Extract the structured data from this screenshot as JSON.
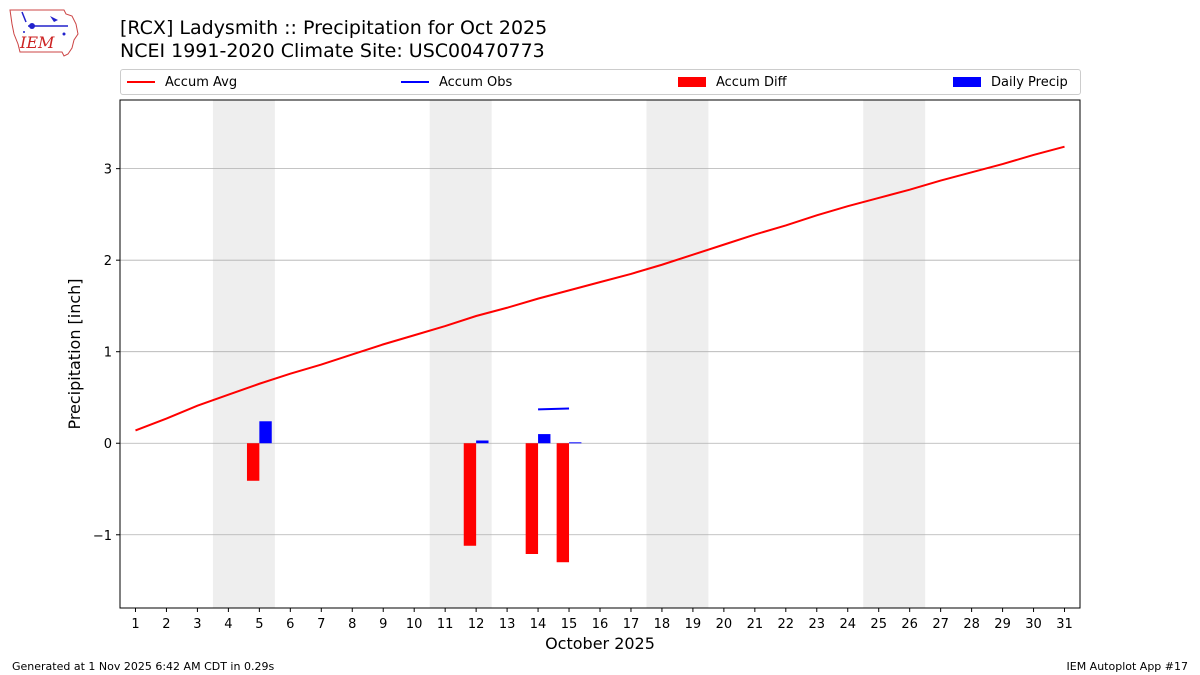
{
  "header": {
    "title_line1": "[RCX] Ladysmith :: Precipitation for Oct 2025",
    "title_line2": "NCEI 1991-2020 Climate Site: USC00470773",
    "logo_text": "IEM"
  },
  "footer": {
    "generated": "Generated at 1 Nov 2025 6:42 AM CDT in 0.29s",
    "app": "IEM Autoplot App #17"
  },
  "legend": {
    "accum_avg": "Accum Avg",
    "accum_obs": "Accum Obs",
    "accum_diff": "Accum Diff",
    "daily_precip": "Daily Precip"
  },
  "colors": {
    "accum_avg": "#ff0000",
    "accum_obs": "#0000ff",
    "accum_diff": "#ff0000",
    "daily_precip": "#0000ff",
    "weekend_shade": "#eeeeee",
    "grid": "#b0b0b0"
  },
  "chart_data": {
    "type": "bar",
    "xlabel": "October 2025",
    "ylabel": "Precipitation [inch]",
    "xlim": [
      0.5,
      31.5
    ],
    "ylim": [
      -1.8,
      3.75
    ],
    "y_ticks": [
      -1,
      0,
      1,
      2,
      3
    ],
    "y_tick_labels": [
      "−1",
      "0",
      "1",
      "2",
      "3"
    ],
    "x_ticks": [
      1,
      2,
      3,
      4,
      5,
      6,
      7,
      8,
      9,
      10,
      11,
      12,
      13,
      14,
      15,
      16,
      17,
      18,
      19,
      20,
      21,
      22,
      23,
      24,
      25,
      26,
      27,
      28,
      29,
      30,
      31
    ],
    "grid": "horizontal",
    "legend_position": "top",
    "weekends": [
      [
        4,
        5
      ],
      [
        11,
        12
      ],
      [
        18,
        19
      ],
      [
        25,
        26
      ]
    ],
    "series": [
      {
        "name": "Accum Avg",
        "type": "line",
        "x": [
          1,
          2,
          3,
          4,
          5,
          6,
          7,
          8,
          9,
          10,
          11,
          12,
          13,
          14,
          15,
          16,
          17,
          18,
          19,
          20,
          21,
          22,
          23,
          24,
          25,
          26,
          27,
          28,
          29,
          30,
          31
        ],
        "values": [
          0.14,
          0.27,
          0.41,
          0.53,
          0.65,
          0.76,
          0.86,
          0.97,
          1.08,
          1.18,
          1.28,
          1.39,
          1.48,
          1.58,
          1.67,
          1.76,
          1.85,
          1.95,
          2.06,
          2.17,
          2.28,
          2.38,
          2.49,
          2.59,
          2.68,
          2.77,
          2.87,
          2.96,
          3.05,
          3.15,
          3.24
        ]
      },
      {
        "name": "Accum Obs",
        "type": "line",
        "x": [
          14,
          15
        ],
        "values": [
          0.37,
          0.38
        ]
      },
      {
        "name": "Accum Diff",
        "type": "bar",
        "x": [
          5,
          12,
          14,
          15
        ],
        "values": [
          -0.41,
          -1.12,
          -1.21,
          -1.3
        ]
      },
      {
        "name": "Daily Precip",
        "type": "bar",
        "x": [
          5,
          12,
          14,
          15
        ],
        "values": [
          0.24,
          0.03,
          0.1,
          0.01
        ]
      }
    ]
  }
}
